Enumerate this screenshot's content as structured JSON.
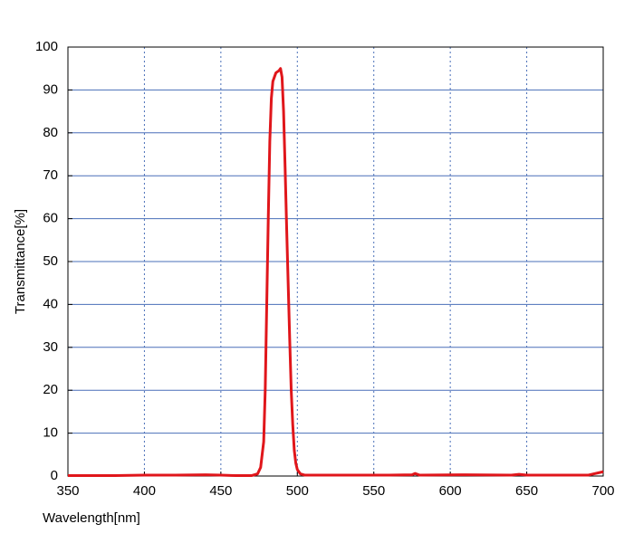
{
  "chart_data": {
    "type": "line",
    "x_label": "Wavelength[nm]",
    "y_label": "Transmittance[%]",
    "x": [
      350,
      380,
      400,
      420,
      440,
      450,
      460,
      470,
      474,
      476,
      478,
      479,
      480,
      481,
      482,
      483,
      484,
      486,
      488,
      489,
      490,
      491,
      492,
      493,
      494,
      495,
      496,
      497,
      498,
      499,
      500,
      502,
      505,
      530,
      560,
      575,
      577,
      580,
      610,
      640,
      645,
      650,
      690,
      700
    ],
    "series": [
      {
        "name": "Transmittance",
        "color": "#e0161b",
        "values": [
          0.1,
          0.1,
          0.2,
          0.2,
          0.3,
          0.2,
          0.1,
          0.1,
          0.5,
          2,
          8,
          20,
          40,
          60,
          78,
          88,
          92,
          94,
          94.5,
          95,
          93,
          85,
          72,
          58,
          45,
          32,
          20,
          12,
          6,
          3,
          1.5,
          0.5,
          0.2,
          0.2,
          0.2,
          0.3,
          0.6,
          0.2,
          0.3,
          0.2,
          0.4,
          0.2,
          0.2,
          1
        ]
      }
    ],
    "xlim": [
      350,
      700
    ],
    "xticks": [
      350,
      400,
      450,
      500,
      550,
      600,
      650,
      700
    ],
    "ylim": [
      0,
      100
    ],
    "yticks": [
      0,
      10,
      20,
      30,
      40,
      50,
      60,
      70,
      80,
      90,
      100
    ],
    "grid": true
  }
}
